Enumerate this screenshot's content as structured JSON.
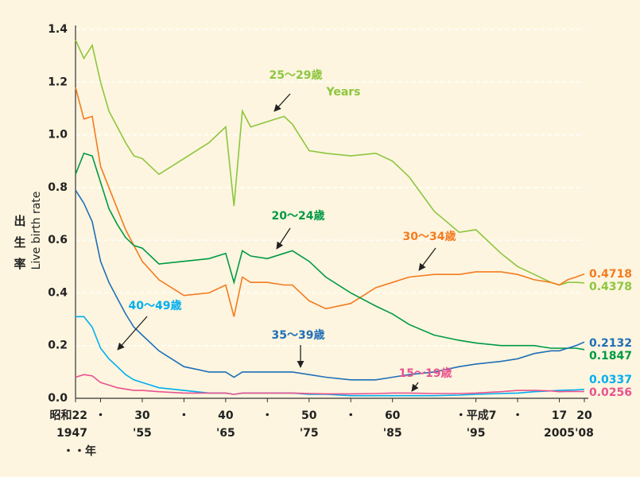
{
  "chart_data": {
    "type": "line",
    "ylabel_ja": "出生率",
    "ylabel": "Live birth rate",
    "x_unit": "・・年",
    "annotation": "Years",
    "x": [
      1947,
      1948,
      1949,
      1950,
      1951,
      1952,
      1953,
      1954,
      1955,
      1957,
      1960,
      1963,
      1965,
      1966,
      1967,
      1968,
      1970,
      1972,
      1973,
      1975,
      1977,
      1980,
      1983,
      1985,
      1987,
      1990,
      1993,
      1995,
      1998,
      2000,
      2002,
      2004,
      2005,
      2006,
      2007,
      2008
    ],
    "series": [
      {
        "name": "25〜29歳",
        "color": "#8dc63f",
        "values": [
          1.36,
          1.29,
          1.34,
          1.2,
          1.09,
          1.03,
          0.97,
          0.92,
          0.91,
          0.85,
          0.91,
          0.97,
          1.03,
          0.73,
          1.09,
          1.03,
          1.05,
          1.07,
          1.04,
          0.94,
          0.93,
          0.92,
          0.93,
          0.9,
          0.84,
          0.71,
          0.63,
          0.64,
          0.55,
          0.5,
          0.47,
          0.44,
          0.43,
          0.44,
          0.44,
          0.4378
        ]
      },
      {
        "name": "30〜34歳",
        "color": "#f47b20",
        "values": [
          1.18,
          1.06,
          1.07,
          0.88,
          0.8,
          0.72,
          0.64,
          0.58,
          0.52,
          0.45,
          0.39,
          0.4,
          0.43,
          0.31,
          0.46,
          0.44,
          0.44,
          0.43,
          0.43,
          0.37,
          0.34,
          0.36,
          0.42,
          0.44,
          0.46,
          0.47,
          0.47,
          0.48,
          0.48,
          0.47,
          0.45,
          0.44,
          0.43,
          0.45,
          0.46,
          0.4718
        ]
      },
      {
        "name": "20〜24歳",
        "color": "#009a44",
        "values": [
          0.85,
          0.93,
          0.92,
          0.82,
          0.72,
          0.66,
          0.61,
          0.58,
          0.57,
          0.51,
          0.52,
          0.53,
          0.55,
          0.44,
          0.56,
          0.54,
          0.53,
          0.55,
          0.56,
          0.52,
          0.46,
          0.4,
          0.35,
          0.32,
          0.28,
          0.24,
          0.22,
          0.21,
          0.2,
          0.2,
          0.2,
          0.19,
          0.19,
          0.19,
          0.19,
          0.1847
        ]
      },
      {
        "name": "35〜39歳",
        "color": "#1f6fb8",
        "values": [
          0.79,
          0.74,
          0.67,
          0.52,
          0.44,
          0.38,
          0.32,
          0.27,
          0.24,
          0.18,
          0.12,
          0.1,
          0.1,
          0.08,
          0.1,
          0.1,
          0.1,
          0.1,
          0.1,
          0.09,
          0.08,
          0.07,
          0.07,
          0.08,
          0.09,
          0.1,
          0.12,
          0.13,
          0.14,
          0.15,
          0.17,
          0.18,
          0.18,
          0.19,
          0.2,
          0.2132
        ]
      },
      {
        "name": "40〜49歳",
        "color": "#00aeef",
        "values": [
          0.31,
          0.31,
          0.27,
          0.19,
          0.15,
          0.12,
          0.09,
          0.07,
          0.06,
          0.04,
          0.03,
          0.02,
          0.02,
          0.015,
          0.02,
          0.02,
          0.02,
          0.02,
          0.02,
          0.015,
          0.015,
          0.01,
          0.01,
          0.01,
          0.01,
          0.01,
          0.012,
          0.015,
          0.018,
          0.02,
          0.025,
          0.028,
          0.03,
          0.031,
          0.032,
          0.0337
        ]
      },
      {
        "name": "15〜19歳",
        "color": "#e8538f",
        "values": [
          0.08,
          0.09,
          0.085,
          0.06,
          0.05,
          0.04,
          0.035,
          0.03,
          0.03,
          0.025,
          0.02,
          0.02,
          0.02,
          0.015,
          0.02,
          0.02,
          0.02,
          0.02,
          0.02,
          0.018,
          0.017,
          0.017,
          0.018,
          0.02,
          0.02,
          0.018,
          0.018,
          0.02,
          0.025,
          0.03,
          0.03,
          0.028,
          0.025,
          0.026,
          0.026,
          0.0256
        ]
      }
    ],
    "xlim": [
      1947,
      2008
    ],
    "ylim": [
      0,
      1.4
    ],
    "yticks": [
      {
        "value": 0,
        "label": "0.0"
      },
      {
        "value": 0.2,
        "label": "0.2"
      },
      {
        "value": 0.4,
        "label": "0.4"
      },
      {
        "value": 0.6,
        "label": "0.6"
      },
      {
        "value": 0.8,
        "label": "0.8"
      },
      {
        "value": 1.0,
        "label": "1.0"
      },
      {
        "value": 1.2,
        "label": "1.2"
      },
      {
        "value": 1.4,
        "label": "1.4"
      }
    ],
    "xticks": [
      {
        "value": 1947,
        "label": "昭和22"
      },
      {
        "value": 1950,
        "label": "・"
      },
      {
        "value": 1955,
        "label": "30"
      },
      {
        "value": 1960,
        "label": "・"
      },
      {
        "value": 1965,
        "label": "40"
      },
      {
        "value": 1970,
        "label": "・"
      },
      {
        "value": 1975,
        "label": "50"
      },
      {
        "value": 1980,
        "label": "・"
      },
      {
        "value": 1985,
        "label": "60"
      },
      {
        "value": 1995,
        "label": "・平成7"
      },
      {
        "value": 2000,
        "label": "・"
      },
      {
        "value": 2005,
        "label": "17"
      },
      {
        "value": 2008,
        "label": "20"
      }
    ],
    "xticks2": [
      {
        "value": 1947,
        "label": "1947"
      },
      {
        "value": 1955,
        "label": "'55"
      },
      {
        "value": 1965,
        "label": "'65"
      },
      {
        "value": 1975,
        "label": "'75"
      },
      {
        "value": 1985,
        "label": "'85"
      },
      {
        "value": 1995,
        "label": "'95"
      },
      {
        "value": 2005,
        "label": "2005"
      },
      {
        "value": 2008,
        "label": "'08"
      }
    ],
    "grid": true
  }
}
